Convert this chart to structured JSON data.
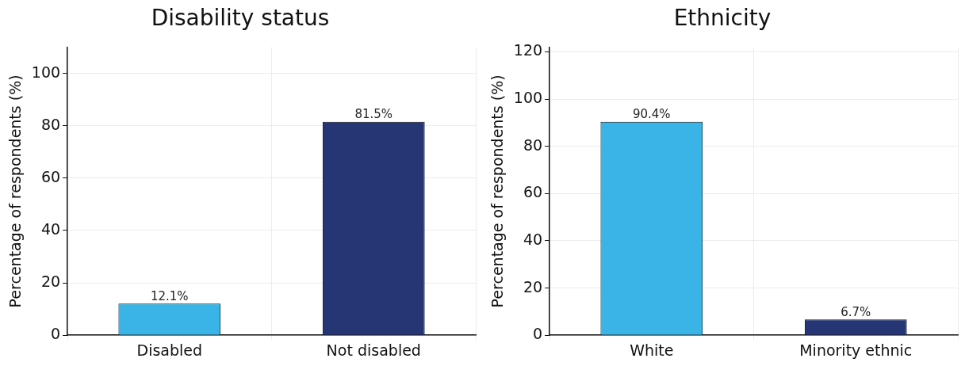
{
  "chart_data": [
    {
      "type": "bar",
      "title": "Disability status",
      "ylabel": "Percentage of respondents (%)",
      "categories": [
        "Disabled",
        "Not disabled"
      ],
      "values": [
        12.1,
        81.5
      ],
      "colors": [
        "#3ab4e6",
        "#263574"
      ],
      "ylim": [
        0,
        110
      ],
      "yticks": [
        0,
        20,
        40,
        60,
        80,
        100
      ],
      "grid": true,
      "data_labels": true,
      "value_labels": [
        "12.1%",
        "81.5%"
      ]
    },
    {
      "type": "bar",
      "title": "Ethnicity",
      "ylabel": "Percentage of respondents (%)",
      "categories": [
        "White",
        "Minority ethnic"
      ],
      "values": [
        90.4,
        6.7
      ],
      "colors": [
        "#3ab4e6",
        "#263574"
      ],
      "ylim": [
        0,
        122
      ],
      "yticks": [
        0,
        20,
        40,
        60,
        80,
        100,
        120
      ],
      "grid": true,
      "data_labels": true,
      "value_labels": [
        "90.4%",
        "6.7%"
      ]
    }
  ]
}
